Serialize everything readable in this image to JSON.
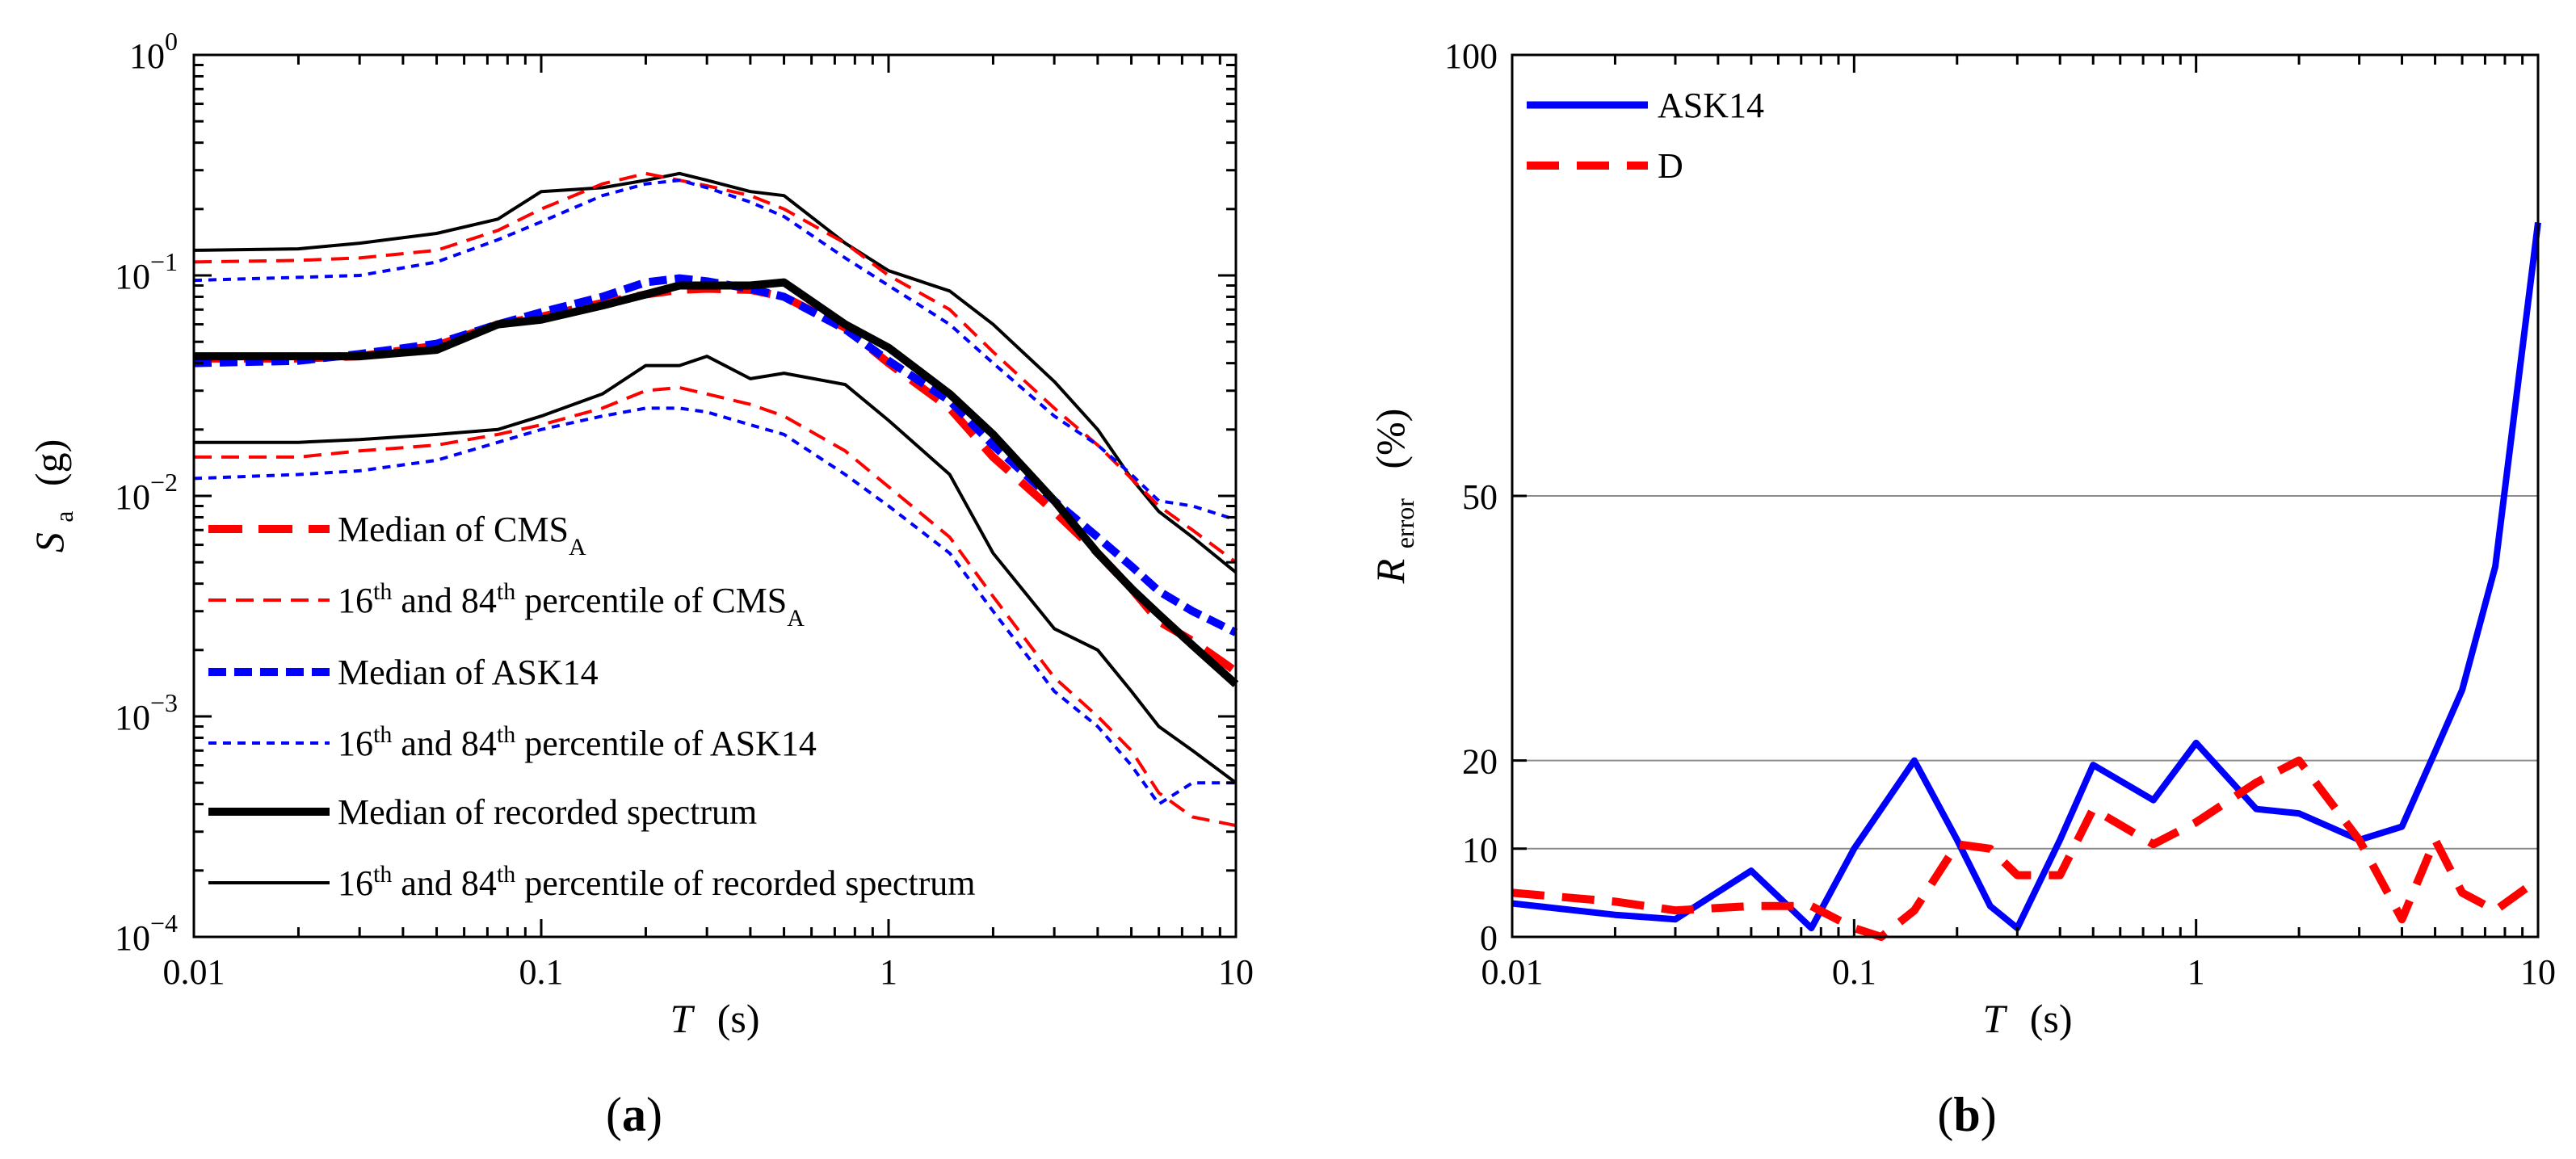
{
  "chart_data": [
    {
      "type": "line",
      "panel_label": {
        "open": "(",
        "letter": "a",
        "close": ")"
      },
      "xlabel": {
        "symbol": "T",
        "unit": "(s)"
      },
      "ylabel": {
        "symbol": "S",
        "sub": "a",
        "unit": "(g)"
      },
      "xscale": "log",
      "yscale": "log",
      "xlim": [
        0.01,
        10
      ],
      "ylim": [
        0.0001,
        1
      ],
      "xticks": [
        {
          "value": 0.01,
          "label": "0.01"
        },
        {
          "value": 0.1,
          "label": "0.1"
        },
        {
          "value": 1,
          "label": "1"
        },
        {
          "value": 10,
          "label": "10"
        }
      ],
      "yticks": [
        {
          "value": 1,
          "base": "10",
          "exp": "0"
        },
        {
          "value": 0.1,
          "base": "10",
          "exp": "-1"
        },
        {
          "value": 0.01,
          "base": "10",
          "exp": "-2"
        },
        {
          "value": 0.001,
          "base": "10",
          "exp": "-3"
        },
        {
          "value": 0.0001,
          "base": "10",
          "exp": "-4"
        }
      ],
      "grid": false,
      "legend_position": "bottom-left",
      "legend": [
        {
          "parts": [
            {
              "t": "Median of CMS"
            },
            {
              "t": "A",
              "sub": true
            }
          ],
          "color": "#ff0000",
          "dash": "42 20",
          "width": 10
        },
        {
          "parts": [
            {
              "t": "16"
            },
            {
              "t": "th",
              "sup": true
            },
            {
              "t": " and 84"
            },
            {
              "t": "th",
              "sup": true
            },
            {
              "t": " percentile of CMS"
            },
            {
              "t": "A",
              "sub": true
            }
          ],
          "color": "#ff0000",
          "dash": "22 12",
          "width": 4
        },
        {
          "parts": [
            {
              "t": "Median of  ASK14"
            }
          ],
          "color": "#0000ff",
          "dash": "22 10",
          "width": 10
        },
        {
          "parts": [
            {
              "t": "16"
            },
            {
              "t": "th",
              "sup": true
            },
            {
              "t": " and 84"
            },
            {
              "t": "th",
              "sup": true
            },
            {
              "t": " percentile of ASK14"
            }
          ],
          "color": "#0000ff",
          "dash": "10 8",
          "width": 4
        },
        {
          "parts": [
            {
              "t": "Median of recorded spectrum"
            }
          ],
          "color": "#000000",
          "dash": "",
          "width": 10
        },
        {
          "parts": [
            {
              "t": "16"
            },
            {
              "t": "th",
              "sup": true
            },
            {
              "t": " and 84"
            },
            {
              "t": "th",
              "sup": true
            },
            {
              "t": " percentile of recorded spectrum"
            }
          ],
          "color": "#000000",
          "dash": "",
          "width": 4
        }
      ],
      "x": [
        0.01,
        0.02,
        0.03,
        0.05,
        0.075,
        0.1,
        0.15,
        0.2,
        0.25,
        0.3,
        0.4,
        0.5,
        0.75,
        1,
        1.5,
        2,
        3,
        4,
        5,
        6,
        7.5,
        10
      ],
      "series": [
        {
          "style": "rec16",
          "color": "#000000",
          "dash": "",
          "width": 4,
          "values": [
            0.0175,
            0.0175,
            0.018,
            0.019,
            0.02,
            0.023,
            0.029,
            0.039,
            0.039,
            0.043,
            0.034,
            0.036,
            0.032,
            0.022,
            0.0125,
            0.0055,
            0.0025,
            0.002,
            0.0013,
            0.0009,
            0.0007,
            0.0005
          ]
        },
        {
          "style": "cms16",
          "color": "#ff0000",
          "dash": "22 12",
          "width": 4,
          "values": [
            0.015,
            0.015,
            0.016,
            0.017,
            0.019,
            0.021,
            0.025,
            0.03,
            0.031,
            0.029,
            0.026,
            0.023,
            0.016,
            0.011,
            0.0065,
            0.0035,
            0.0015,
            0.001,
            0.0007,
            0.00045,
            0.00035,
            0.00032
          ]
        },
        {
          "style": "ask16",
          "color": "#0000ff",
          "dash": "10 8",
          "width": 4,
          "values": [
            0.012,
            0.0125,
            0.013,
            0.0145,
            0.0175,
            0.02,
            0.023,
            0.025,
            0.025,
            0.024,
            0.021,
            0.019,
            0.0125,
            0.009,
            0.0055,
            0.003,
            0.0013,
            0.0009,
            0.0006,
            0.0004,
            0.0005,
            0.0005
          ]
        },
        {
          "style": "rec84",
          "color": "#000000",
          "dash": "",
          "width": 4,
          "values": [
            0.13,
            0.132,
            0.14,
            0.155,
            0.18,
            0.24,
            0.25,
            0.27,
            0.29,
            0.27,
            0.24,
            0.23,
            0.14,
            0.105,
            0.085,
            0.06,
            0.033,
            0.02,
            0.012,
            0.0085,
            0.0065,
            0.0045
          ]
        },
        {
          "style": "cms84",
          "color": "#ff0000",
          "dash": "22 12",
          "width": 4,
          "values": [
            0.115,
            0.117,
            0.12,
            0.13,
            0.16,
            0.2,
            0.26,
            0.29,
            0.27,
            0.255,
            0.23,
            0.2,
            0.14,
            0.1,
            0.07,
            0.045,
            0.025,
            0.017,
            0.012,
            0.009,
            0.007,
            0.005
          ]
        },
        {
          "style": "ask84",
          "color": "#0000ff",
          "dash": "10 8",
          "width": 4,
          "values": [
            0.095,
            0.098,
            0.1,
            0.115,
            0.145,
            0.175,
            0.23,
            0.26,
            0.27,
            0.25,
            0.215,
            0.185,
            0.12,
            0.09,
            0.06,
            0.04,
            0.023,
            0.017,
            0.0125,
            0.0095,
            0.009,
            0.0078
          ]
        },
        {
          "style": "cms50",
          "color": "#ff0000",
          "dash": "42 20",
          "width": 10,
          "values": [
            0.042,
            0.042,
            0.043,
            0.048,
            0.06,
            0.065,
            0.075,
            0.082,
            0.086,
            0.087,
            0.086,
            0.08,
            0.058,
            0.04,
            0.025,
            0.015,
            0.0085,
            0.0055,
            0.0038,
            0.0027,
            0.0022,
            0.0016
          ]
        },
        {
          "style": "ask50",
          "color": "#0000ff",
          "dash": "22 10",
          "width": 10,
          "values": [
            0.04,
            0.041,
            0.044,
            0.049,
            0.06,
            0.068,
            0.08,
            0.093,
            0.097,
            0.094,
            0.087,
            0.08,
            0.057,
            0.041,
            0.027,
            0.017,
            0.0095,
            0.0065,
            0.0048,
            0.0037,
            0.003,
            0.0024
          ]
        },
        {
          "style": "rec50",
          "color": "#000000",
          "dash": "",
          "width": 10,
          "values": [
            0.043,
            0.043,
            0.043,
            0.046,
            0.06,
            0.063,
            0.073,
            0.082,
            0.09,
            0.09,
            0.09,
            0.093,
            0.06,
            0.047,
            0.029,
            0.019,
            0.0095,
            0.0055,
            0.0038,
            0.0029,
            0.0021,
            0.0014
          ]
        }
      ]
    },
    {
      "type": "line",
      "panel_label": {
        "open": "(",
        "letter": "b",
        "close": ")"
      },
      "xlabel": {
        "symbol": "T",
        "unit": "(s)"
      },
      "ylabel": {
        "symbol": "R",
        "sub": "error",
        "unit": "(%)"
      },
      "xscale": "log",
      "yscale": "broken-linear",
      "xlim": [
        0.01,
        10
      ],
      "ylim": [
        0,
        100
      ],
      "y_segments": [
        {
          "from": 0,
          "to": 20,
          "frac_from": 0,
          "frac_to": 0.2
        },
        {
          "from": 20,
          "to": 50,
          "frac_from": 0.2,
          "frac_to": 0.5
        },
        {
          "from": 50,
          "to": 100,
          "frac_from": 0.5,
          "frac_to": 1
        }
      ],
      "xticks": [
        {
          "value": 0.01,
          "label": "0.01"
        },
        {
          "value": 0.1,
          "label": "0.1"
        },
        {
          "value": 1,
          "label": "1"
        },
        {
          "value": 10,
          "label": "10"
        }
      ],
      "yticks": [
        {
          "value": 0,
          "label": "0"
        },
        {
          "value": 10,
          "label": "10"
        },
        {
          "value": 20,
          "label": "20"
        },
        {
          "value": 50,
          "label": "50"
        },
        {
          "value": 100,
          "label": "100"
        }
      ],
      "gridlines_y": [
        10,
        20,
        50
      ],
      "legend_position": "top-left",
      "legend": [
        {
          "parts": [
            {
              "t": "ASK14"
            }
          ],
          "color": "#0000ff",
          "dash": "",
          "width": 9
        },
        {
          "parts": [
            {
              "t": "D"
            }
          ],
          "color": "#ff0000",
          "dash": "40 22",
          "width": 10
        }
      ],
      "series": [
        {
          "name": "ASK14",
          "color": "#0000ff",
          "dash": "",
          "width": 8,
          "x": [
            0.01,
            0.02,
            0.03,
            0.05,
            0.075,
            0.1,
            0.15,
            0.2,
            0.25,
            0.3,
            0.4,
            0.5,
            0.75,
            1,
            1.5,
            2,
            3,
            4,
            5,
            6,
            7.5,
            10
          ],
          "values": [
            3.8,
            2.5,
            2.0,
            7.5,
            1.0,
            10.0,
            20.0,
            11.0,
            3.5,
            1.0,
            11.0,
            19.5,
            15.5,
            22.0,
            14.5,
            14.0,
            11.0,
            12.5,
            21.0,
            28.0,
            42.0,
            81.0
          ]
        },
        {
          "name": "D",
          "color": "#ff0000",
          "dash": "40 22",
          "width": 10,
          "x": [
            0.01,
            0.02,
            0.03,
            0.05,
            0.075,
            0.1,
            0.12,
            0.15,
            0.2,
            0.25,
            0.3,
            0.4,
            0.5,
            0.75,
            1,
            1.5,
            2,
            3,
            4,
            5,
            6,
            7.5,
            10
          ],
          "values": [
            5.0,
            4.0,
            3.0,
            3.5,
            3.5,
            1.0,
            0.0,
            3.0,
            10.5,
            10.0,
            7.0,
            7.0,
            14.5,
            10.5,
            13.0,
            17.5,
            20.0,
            11.0,
            2.0,
            11.0,
            5.0,
            3.0,
            6.5
          ]
        }
      ]
    }
  ]
}
